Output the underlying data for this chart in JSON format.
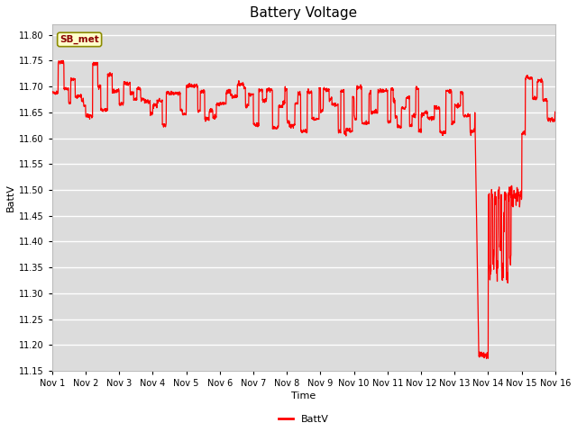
{
  "title": "Battery Voltage",
  "xlabel": "Time",
  "ylabel": "BattV",
  "legend_label": "BattV",
  "line_color": "#FF0000",
  "background_color": "#FFFFFF",
  "plot_bg_color": "#DCDCDC",
  "grid_color": "#FFFFFF",
  "ylim": [
    11.15,
    11.82
  ],
  "yticks": [
    11.15,
    11.2,
    11.25,
    11.3,
    11.35,
    11.4,
    11.45,
    11.5,
    11.55,
    11.6,
    11.65,
    11.7,
    11.75,
    11.8
  ],
  "xlim": [
    1,
    16
  ],
  "label_box_text": "SB_met",
  "label_box_bg": "#FFFFCC",
  "label_box_edge": "#8B8B00",
  "title_fontsize": 11,
  "axis_fontsize": 8,
  "tick_fontsize": 7
}
